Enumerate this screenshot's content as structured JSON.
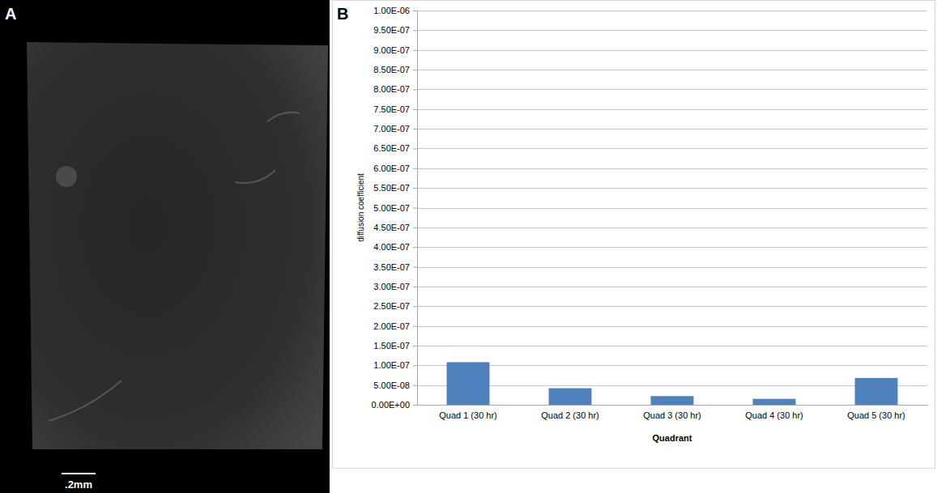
{
  "chart_data": {
    "type": "bar",
    "categories": [
      "Quad 1 (30 hr)",
      "Quad 2 (30 hr)",
      "Quad 3 (30 hr)",
      "Quad 4 (30 hr)",
      "Quad 5 (30 hr)"
    ],
    "values": [
      1.08e-07,
      4.2e-08,
      2.2e-08,
      1.5e-08,
      6.8e-08
    ],
    "color": "#4f81bd",
    "x_label": "Quadrant",
    "y_label": "diffusion coefficient",
    "ylim": [
      0,
      1e-06
    ],
    "yticks": [
      {
        "value": 0,
        "label": "0.00E+00"
      },
      {
        "value": 5e-08,
        "label": "5.00E-08"
      },
      {
        "value": 1e-07,
        "label": "1.00E-07"
      },
      {
        "value": 1.5e-07,
        "label": "1.50E-07"
      },
      {
        "value": 2e-07,
        "label": "2.00E-07"
      },
      {
        "value": 2.5e-07,
        "label": "2.50E-07"
      },
      {
        "value": 3e-07,
        "label": "3.00E-07"
      },
      {
        "value": 3.5e-07,
        "label": "3.50E-07"
      },
      {
        "value": 4e-07,
        "label": "4.00E-07"
      },
      {
        "value": 4.5e-07,
        "label": "4.50E-07"
      },
      {
        "value": 5e-07,
        "label": "5.00E-07"
      },
      {
        "value": 5.5e-07,
        "label": "5.50E-07"
      },
      {
        "value": 6e-07,
        "label": "6.00E-07"
      },
      {
        "value": 6.5e-07,
        "label": "6.50E-07"
      },
      {
        "value": 7e-07,
        "label": "7.00E-07"
      },
      {
        "value": 7.5e-07,
        "label": "7.50E-07"
      },
      {
        "value": 8e-07,
        "label": "8.00E-07"
      },
      {
        "value": 8.5e-07,
        "label": "8.50E-07"
      },
      {
        "value": 9e-07,
        "label": "9.00E-07"
      },
      {
        "value": 9.5e-07,
        "label": "9.50E-07"
      },
      {
        "value": 1e-06,
        "label": "1.00E-06"
      }
    ],
    "grid": true
  },
  "panel_labels": [
    "A",
    "B"
  ],
  "image": {
    "scale_bar_label": ".2mm"
  }
}
